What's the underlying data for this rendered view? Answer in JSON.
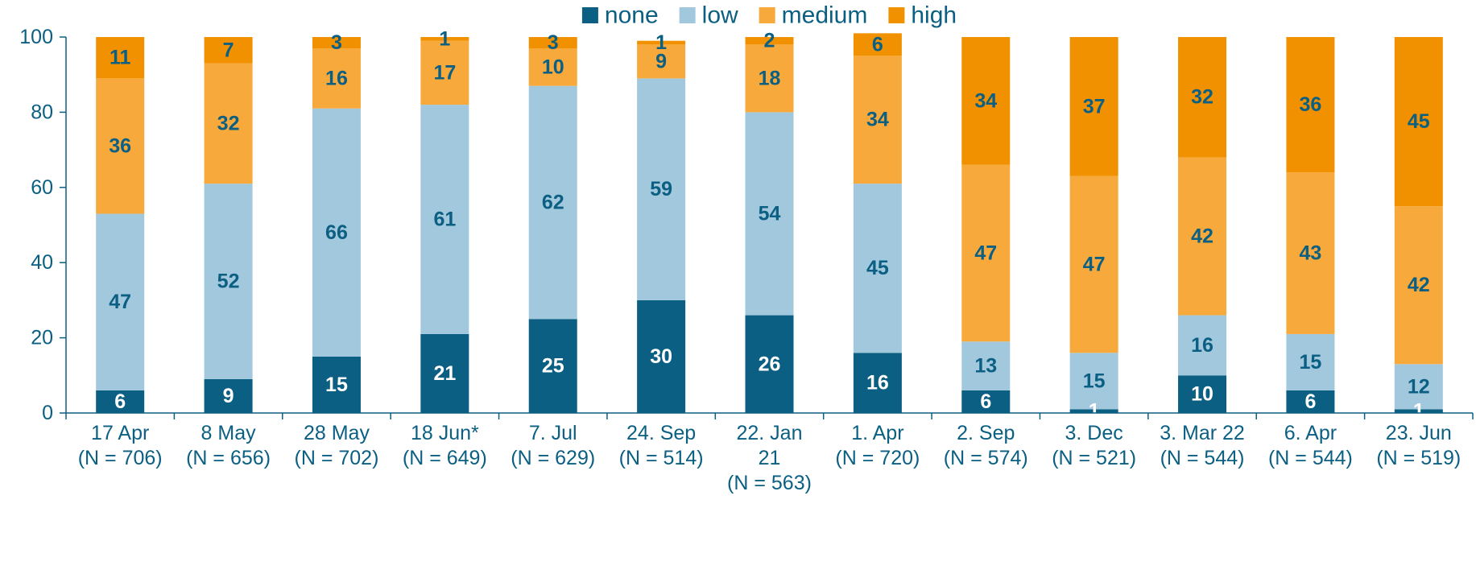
{
  "chart_data": {
    "type": "bar",
    "stacked": true,
    "categories": [
      [
        "17 Apr",
        "(N = 706)"
      ],
      [
        "8 May",
        "(N = 656)"
      ],
      [
        "28 May",
        "(N = 702)"
      ],
      [
        "18 Jun*",
        "(N = 649)"
      ],
      [
        "7. Jul",
        "(N = 629)"
      ],
      [
        "24. Sep",
        "(N = 514)"
      ],
      [
        "22. Jan",
        "21",
        "(N = 563)"
      ],
      [
        "1. Apr",
        "(N = 720)"
      ],
      [
        "2. Sep",
        "(N = 574)"
      ],
      [
        "3. Dec",
        "(N = 521)"
      ],
      [
        "3. Mar 22",
        "(N = 544)"
      ],
      [
        "6. Apr",
        "(N = 544)"
      ],
      [
        "23. Jun",
        "(N = 519)"
      ]
    ],
    "series": [
      {
        "name": "none",
        "color": "#0b5f82",
        "label_color": "#ffffff",
        "values": [
          6,
          9,
          15,
          21,
          25,
          30,
          26,
          16,
          6,
          1,
          10,
          6,
          1
        ]
      },
      {
        "name": "low",
        "color": "#a2c8de",
        "label_color": "#0b5f82",
        "values": [
          47,
          52,
          66,
          61,
          62,
          59,
          54,
          45,
          13,
          15,
          16,
          15,
          12
        ]
      },
      {
        "name": "medium",
        "color": "#f8a93b",
        "label_color": "#0b5f82",
        "values": [
          36,
          32,
          16,
          17,
          10,
          9,
          18,
          34,
          47,
          47,
          42,
          43,
          42
        ]
      },
      {
        "name": "high",
        "color": "#f29100",
        "label_color": "#0b5f82",
        "values": [
          11,
          7,
          3,
          1,
          3,
          1,
          2,
          6,
          34,
          37,
          32,
          36,
          45
        ]
      }
    ],
    "ylim": [
      0,
      100
    ],
    "yticks": [
      0,
      20,
      40,
      60,
      80,
      100
    ],
    "ytick_labels": [
      "0",
      "20",
      "40",
      "60",
      "80",
      "100"
    ],
    "grid": false,
    "legend_position": "top-center",
    "title": "",
    "xlabel": "",
    "ylabel": ""
  }
}
